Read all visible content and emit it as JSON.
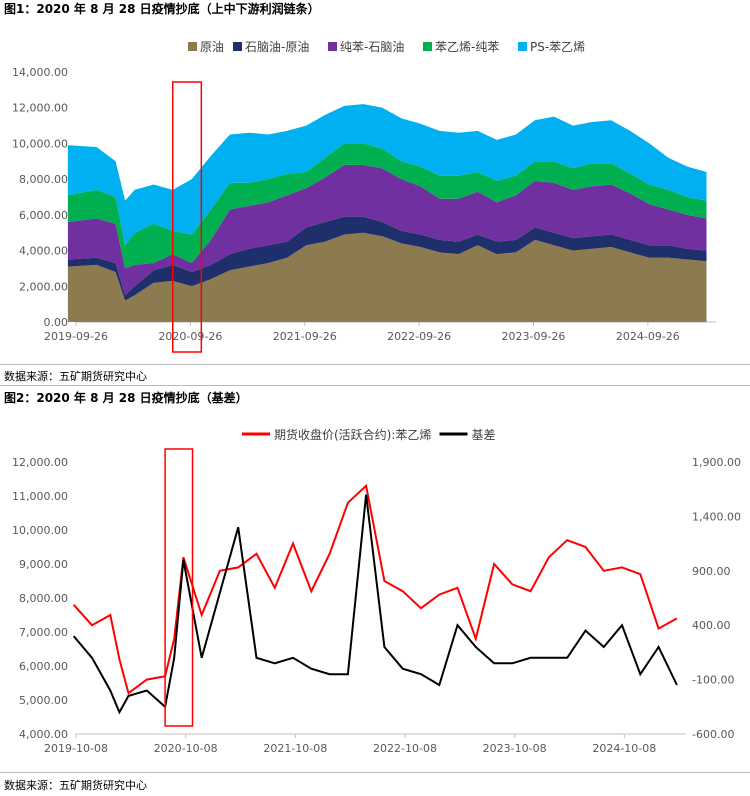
{
  "figure1": {
    "title": "图1：2020 年 8 月 28 日疫情抄底（上中下游利润链条）",
    "source": "数据来源：五矿期货研究中心",
    "chart_data": {
      "type": "area",
      "stacked": true,
      "ylim": [
        0,
        14000
      ],
      "yticks": [
        "0.00",
        "2,000.00",
        "4,000.00",
        "6,000.00",
        "8,000.00",
        "10,000.00",
        "12,000.00",
        "14,000.00"
      ],
      "xticks": [
        "2019-09-26",
        "2020-09-26",
        "2021-09-26",
        "2022-09-26",
        "2023-09-26",
        "2024-09-26"
      ],
      "legend_position": "top",
      "x": [
        "2019-09",
        "2019-12",
        "2020-02",
        "2020-03",
        "2020-04",
        "2020-06",
        "2020-08",
        "2020-10",
        "2020-12",
        "2021-02",
        "2021-04",
        "2021-06",
        "2021-08",
        "2021-10",
        "2021-12",
        "2022-02",
        "2022-04",
        "2022-06",
        "2022-08",
        "2022-10",
        "2022-12",
        "2023-02",
        "2023-04",
        "2023-06",
        "2023-08",
        "2023-10",
        "2023-12",
        "2024-02",
        "2024-04",
        "2024-06",
        "2024-08",
        "2024-10",
        "2024-12",
        "2025-02",
        "2025-04"
      ],
      "series": [
        {
          "name": "原油",
          "color": "#8C7B4E",
          "values": [
            3100,
            3200,
            2800,
            1200,
            1500,
            2200,
            2300,
            2000,
            2400,
            2900,
            3100,
            3300,
            3600,
            4300,
            4500,
            4900,
            5000,
            4800,
            4400,
            4200,
            3900,
            3800,
            4300,
            3800,
            3900,
            4600,
            4300,
            4000,
            4100,
            4200,
            3900,
            3600,
            3600,
            3500,
            3400
          ]
        },
        {
          "name": "石脑油-原油",
          "color": "#1F2F6B",
          "values": [
            400,
            400,
            500,
            300,
            500,
            700,
            900,
            800,
            800,
            900,
            1000,
            1000,
            900,
            1000,
            1100,
            1000,
            900,
            800,
            700,
            700,
            700,
            700,
            600,
            700,
            700,
            700,
            700,
            700,
            700,
            700,
            700,
            700,
            700,
            600,
            600
          ]
        },
        {
          "name": "纯苯-石脑油",
          "color": "#7030A0",
          "values": [
            2100,
            2200,
            2200,
            1500,
            1200,
            400,
            600,
            500,
            1400,
            2500,
            2400,
            2400,
            2600,
            2200,
            2500,
            2900,
            2900,
            3000,
            2900,
            2700,
            2300,
            2400,
            2400,
            2200,
            2500,
            2600,
            2800,
            2700,
            2800,
            2800,
            2600,
            2300,
            2000,
            1900,
            1800
          ]
        },
        {
          "name": "苯乙烯-纯苯",
          "color": "#00B050",
          "values": [
            1500,
            1600,
            1500,
            1300,
            1800,
            2200,
            1300,
            1600,
            1700,
            1500,
            1300,
            1300,
            1200,
            900,
            1100,
            1200,
            1200,
            1100,
            1000,
            1100,
            1300,
            1300,
            1100,
            1200,
            1100,
            1100,
            1200,
            1200,
            1300,
            1200,
            1100,
            1100,
            1100,
            1000,
            1000
          ]
        },
        {
          "name": "PS-苯乙烯",
          "color": "#00B0F0",
          "values": [
            2800,
            2400,
            2000,
            2500,
            2400,
            2200,
            2300,
            3100,
            3000,
            2700,
            2800,
            2500,
            2400,
            2600,
            2400,
            2100,
            2200,
            2300,
            2400,
            2400,
            2500,
            2400,
            2300,
            2300,
            2300,
            2300,
            2500,
            2400,
            2300,
            2400,
            2400,
            2300,
            1800,
            1700,
            1600
          ]
        }
      ],
      "annotation": "red box around 2020-09"
    }
  },
  "figure2": {
    "title": "图2：2020 年 8 月 28 日疫情抄底（基差）",
    "source": "数据来源：五矿期货研究中心",
    "chart_data": {
      "type": "line",
      "ylim_left": [
        4000,
        12000
      ],
      "ylim_right": [
        -600,
        1900
      ],
      "yticks_left": [
        "4,000.00",
        "5,000.00",
        "6,000.00",
        "7,000.00",
        "8,000.00",
        "9,000.00",
        "10,000.00",
        "11,000.00",
        "12,000.00"
      ],
      "yticks_right": [
        "-600.00",
        "-100.00",
        "400.00",
        "900.00",
        "1,400.00",
        "1,900.00"
      ],
      "xticks": [
        "2019-10-08",
        "2020-10-08",
        "2021-10-08",
        "2022-10-08",
        "2023-10-08",
        "2024-10-08"
      ],
      "legend_position": "top",
      "x": [
        "2019-10",
        "2019-12",
        "2020-02",
        "2020-03",
        "2020-04",
        "2020-06",
        "2020-08",
        "2020-09",
        "2020-10",
        "2020-12",
        "2021-02",
        "2021-04",
        "2021-06",
        "2021-08",
        "2021-10",
        "2021-12",
        "2022-02",
        "2022-04",
        "2022-06",
        "2022-08",
        "2022-10",
        "2022-12",
        "2023-02",
        "2023-04",
        "2023-06",
        "2023-08",
        "2023-10",
        "2023-12",
        "2024-02",
        "2024-04",
        "2024-06",
        "2024-08",
        "2024-10",
        "2024-12",
        "2025-02",
        "2025-04"
      ],
      "series": [
        {
          "name": "期货收盘价(活跃合约):苯乙烯",
          "color": "#FF0000",
          "axis": "left",
          "values": [
            7800,
            7200,
            7500,
            6200,
            5200,
            5600,
            5700,
            6800,
            9200,
            7500,
            8800,
            8900,
            9300,
            8300,
            9600,
            8200,
            9300,
            10800,
            11300,
            8500,
            8200,
            7700,
            8100,
            8300,
            6800,
            9000,
            8400,
            8200,
            9200,
            9700,
            9500,
            8800,
            8900,
            8700,
            7100,
            7400
          ]
        },
        {
          "name": "基差",
          "color": "#000000",
          "axis": "right",
          "values": [
            300,
            100,
            -200,
            -400,
            -250,
            -200,
            -350,
            100,
            1000,
            100,
            700,
            1300,
            100,
            50,
            100,
            0,
            -50,
            -50,
            1600,
            200,
            0,
            -50,
            -150,
            400,
            200,
            50,
            50,
            100,
            100,
            100,
            350,
            200,
            400,
            -50,
            200,
            -150
          ]
        }
      ],
      "annotation": "red box around 2020-09"
    }
  }
}
